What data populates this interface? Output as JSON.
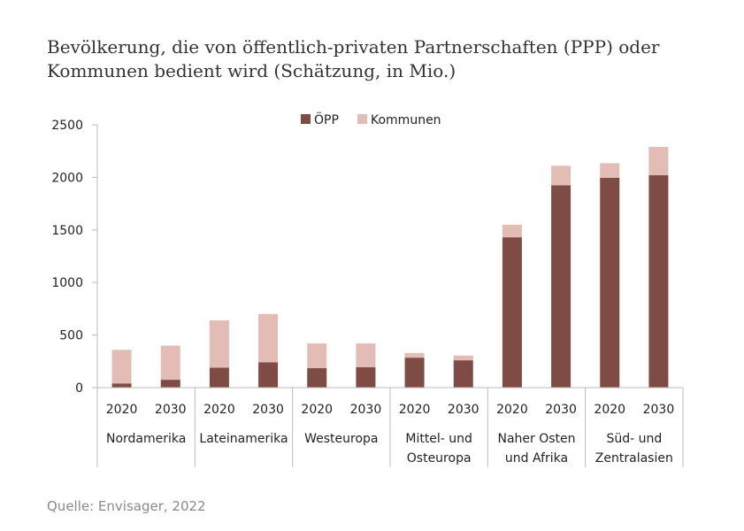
{
  "title_lines": [
    "Bevölkerung, die von öffentlich-privaten Partnerschaften (PPP) oder",
    "Kommunen bedient wird (Schätzung, in Mio.)"
  ],
  "source": "Quelle: Envisager, 2022",
  "colors": {
    "opp": "#7f4b45",
    "kommunen": "#e2bcb5",
    "axis": "#bbbbbb"
  },
  "chart_data": {
    "type": "bar",
    "stacked": true,
    "title": "Bevölkerung, die von öffentlich-privaten Partnerschaften (PPP) oder Kommunen bedient wird (Schätzung, in Mio.)",
    "ylim": [
      0,
      2500
    ],
    "yticks": [
      0,
      500,
      1000,
      1500,
      2000,
      2500
    ],
    "legend": "top-center",
    "series": [
      {
        "name": "ÖPP",
        "values": [
          40,
          75,
          190,
          240,
          185,
          195,
          285,
          260,
          1430,
          1925,
          1995,
          2020
        ]
      },
      {
        "name": "Kommunen",
        "values": [
          320,
          325,
          450,
          460,
          235,
          225,
          45,
          45,
          120,
          185,
          140,
          270
        ]
      }
    ],
    "groups": [
      {
        "label_lines": [
          "Nordamerika"
        ],
        "years": [
          "2020",
          "2030"
        ]
      },
      {
        "label_lines": [
          "Lateinamerika"
        ],
        "years": [
          "2020",
          "2030"
        ]
      },
      {
        "label_lines": [
          "Westeuropa"
        ],
        "years": [
          "2020",
          "2030"
        ]
      },
      {
        "label_lines": [
          "Mittel- und",
          "Osteuropa"
        ],
        "years": [
          "2020",
          "2030"
        ]
      },
      {
        "label_lines": [
          "Naher Osten",
          "und Afrika"
        ],
        "years": [
          "2020",
          "2030"
        ]
      },
      {
        "label_lines": [
          "Süd- und",
          "Zentralasien"
        ],
        "years": [
          "2020",
          "2030"
        ]
      }
    ]
  }
}
